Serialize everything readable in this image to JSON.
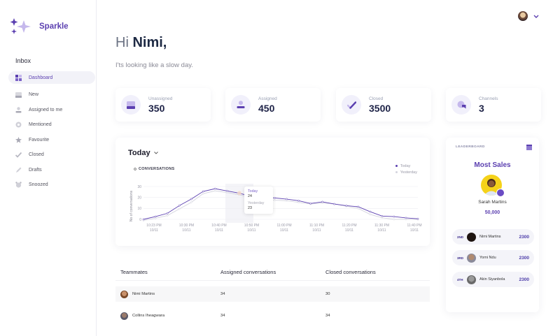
{
  "app": {
    "name": "Sparkle"
  },
  "user": {
    "menu_icon": "chevron-down-icon"
  },
  "sidebar": {
    "section_title": "Inbox",
    "items": [
      {
        "label": "Dashboard",
        "icon": "grid-icon",
        "active": true
      },
      {
        "label": "New",
        "icon": "inbox-tray-icon"
      },
      {
        "label": "Assigned to me",
        "icon": "user-icon"
      },
      {
        "label": "Mentioned",
        "icon": "at-icon"
      },
      {
        "label": "Favourite",
        "icon": "star-icon"
      },
      {
        "label": "Closed",
        "icon": "check-icon"
      },
      {
        "label": "Drafts",
        "icon": "pencil-icon"
      },
      {
        "label": "Snoozed",
        "icon": "alarm-clock-icon"
      }
    ]
  },
  "header": {
    "greeting_prefix": "Hi ",
    "greeting_name": "Nimi,",
    "subtitle": "I'ts looking like a slow day."
  },
  "stats": [
    {
      "label": "Unassigned",
      "value": "350",
      "icon": "inbox-tray-icon"
    },
    {
      "label": "Assigned",
      "value": "450",
      "icon": "user-icon"
    },
    {
      "label": "Closed",
      "value": "3500",
      "icon": "check-icon"
    },
    {
      "label": "Channels",
      "value": "3",
      "icon": "chat-bubbles-icon"
    }
  ],
  "chart_panel": {
    "period": "Today",
    "subtitle": "CONVERSATIONS",
    "legend": [
      "Today",
      "Yesterday"
    ],
    "tooltip": {
      "today_label": "Today",
      "today_value": "24",
      "yesterday_label": "Yesterday",
      "yesterday_value": "23"
    }
  },
  "chart_data": {
    "type": "line",
    "title": "CONVERSATIONS",
    "xlabel": "",
    "ylabel": "No of conversations",
    "ylim": [
      0,
      30
    ],
    "yticks": [
      0,
      10,
      20,
      30
    ],
    "xtick_labels": [
      "10:23 PM 10/11",
      "10:30 PM 10/11",
      "10:40 PM 10/11",
      "10:50 PM 10/11",
      "11:00 PM 10/11",
      "11:10 PM 10/11",
      "11:20 PM 10/11",
      "11:30 PM 10/11",
      "11:40 PM 10/11"
    ],
    "grid": true,
    "legend_position": "top-right",
    "series": [
      {
        "name": "Today",
        "color": "#5b3fb0",
        "values": [
          0,
          2.5,
          5.5,
          12.5,
          18.5,
          25.5,
          28,
          26,
          24,
          21,
          20.5,
          19.5,
          18.5,
          17,
          14.5,
          16,
          14,
          12.5,
          11.5,
          7,
          3,
          2.5,
          1.3,
          0.5
        ]
      },
      {
        "name": "Yesterday",
        "color": "#d4d4de",
        "values": [
          -1,
          1,
          3.5,
          9.5,
          15.5,
          23.5,
          26,
          24.5,
          22.5,
          20,
          19,
          17.5,
          17,
          15.5,
          14,
          15,
          14,
          12,
          10,
          4.5,
          1.5,
          0,
          0,
          0
        ]
      }
    ]
  },
  "table": {
    "headers": [
      "Teammates",
      "Assigned conversations",
      "Closed conversations"
    ],
    "rows": [
      {
        "name": "Nimi Martins",
        "assigned": "34",
        "closed": "30"
      },
      {
        "name": "Collins Iheagwara",
        "assigned": "34",
        "closed": "34"
      }
    ]
  },
  "leaderboard": {
    "label": "LEADERBOARD",
    "title": "Most Sales",
    "winner": {
      "name": "Sarah Martins",
      "score": "50,000"
    },
    "ranks": [
      {
        "pos": "2ND",
        "name": "Nimi Martins",
        "score": "2300"
      },
      {
        "pos": "3RD",
        "name": "Yomi Ndu",
        "score": "2300"
      },
      {
        "pos": "4TH",
        "name": "Akin Siyanbola",
        "score": "2300"
      }
    ]
  },
  "colors": {
    "accent": "#5b3fb0",
    "accent_light": "#c5b8ec",
    "heading": "#1e2347"
  }
}
